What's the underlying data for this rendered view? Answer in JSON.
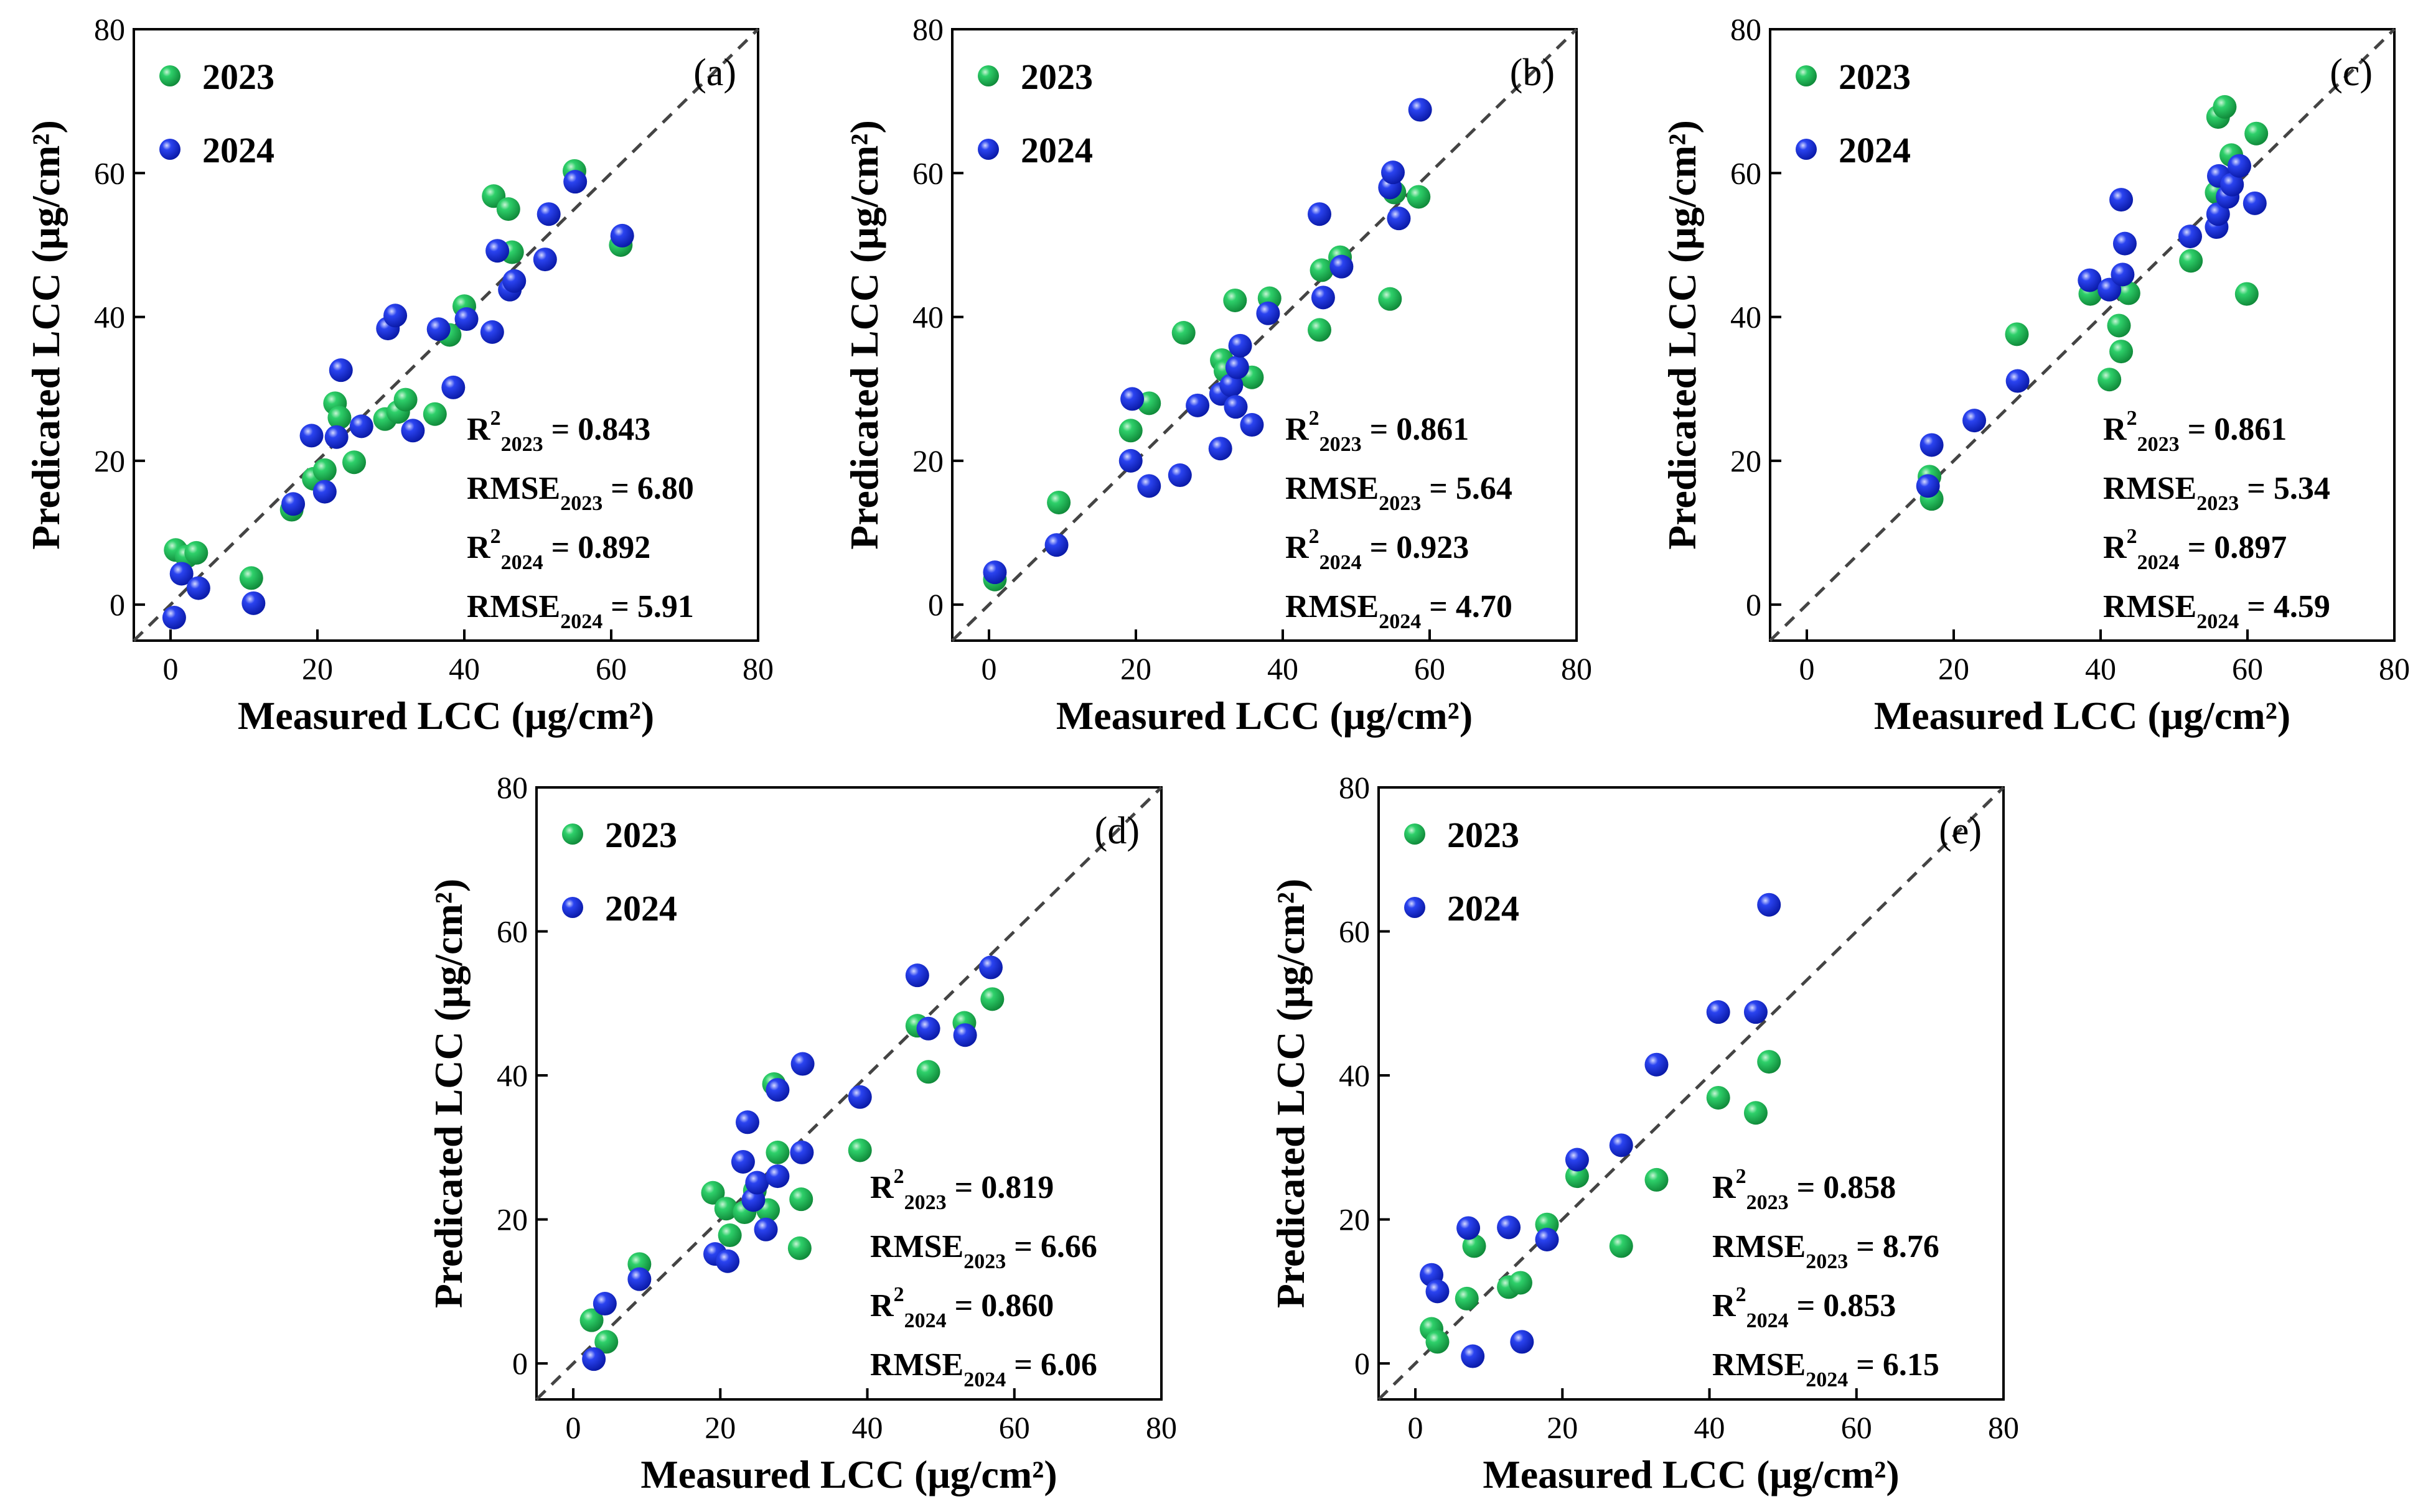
{
  "colors": {
    "series_2023": "#1db954",
    "series_2024": "#1f35e0",
    "diagonal": "#444444",
    "axis": "#000000"
  },
  "chart_data": [
    {
      "type": "scatter",
      "panel_label": "(a)",
      "xlabel": "Measured LCC (μg/cm²)",
      "ylabel": "Predicated LCC (μg/cm²)",
      "xlim": [
        -5,
        80
      ],
      "ylim": [
        -5,
        80
      ],
      "xticks": [
        "0",
        "20",
        "40",
        "60",
        "80"
      ],
      "yticks": [
        "0",
        "20",
        "40",
        "60",
        "80"
      ],
      "legend": [
        "2023",
        "2024"
      ],
      "series": [
        {
          "name": "2023",
          "points": [
            [
              0.7,
              7.6
            ],
            [
              2.2,
              6.7
            ],
            [
              3.5,
              7.2
            ],
            [
              11,
              3.7
            ],
            [
              16.5,
              13.2
            ],
            [
              19.5,
              17.5
            ],
            [
              21,
              18.7
            ],
            [
              22.4,
              28
            ],
            [
              23,
              26
            ],
            [
              25,
              19.8
            ],
            [
              29.2,
              25.8
            ],
            [
              31,
              26.8
            ],
            [
              32,
              28.5
            ],
            [
              36,
              26.5
            ],
            [
              38,
              37.5
            ],
            [
              40,
              41.5
            ],
            [
              44,
              56.8
            ],
            [
              46,
              55
            ],
            [
              46.5,
              49
            ],
            [
              55,
              60.3
            ],
            [
              61.3,
              50
            ]
          ]
        },
        {
          "name": "2024",
          "points": [
            [
              0.5,
              -1.8
            ],
            [
              1.5,
              4.3
            ],
            [
              3.8,
              2.3
            ],
            [
              11.3,
              0.2
            ],
            [
              16.7,
              14
            ],
            [
              19.2,
              23.5
            ],
            [
              21,
              15.7
            ],
            [
              22.6,
              23.3
            ],
            [
              23.2,
              32.6
            ],
            [
              26,
              24.8
            ],
            [
              29.6,
              38.4
            ],
            [
              30.6,
              40.2
            ],
            [
              33,
              24.2
            ],
            [
              36.5,
              38.3
            ],
            [
              38.5,
              30.2
            ],
            [
              40.3,
              39.7
            ],
            [
              43.8,
              37.9
            ],
            [
              44.5,
              49.2
            ],
            [
              46.2,
              43.8
            ],
            [
              46.8,
              45
            ],
            [
              51,
              48
            ],
            [
              51.5,
              54.3
            ],
            [
              55.1,
              58.8
            ],
            [
              61.5,
              51.3
            ]
          ]
        }
      ],
      "stats": [
        {
          "sym": "R",
          "sup": "2",
          "sub": "2023",
          "value": " = 0.843"
        },
        {
          "sym": "RMSE",
          "sup": "",
          "sub": "2023",
          "value": " = 6.80"
        },
        {
          "sym": "R",
          "sup": "2",
          "sub": "2024",
          "value": " = 0.892"
        },
        {
          "sym": "RMSE",
          "sup": "",
          "sub": "2024",
          "value": " = 5.91"
        }
      ]
    },
    {
      "type": "scatter",
      "panel_label": "(b)",
      "xlabel": "Measured LCC (μg/cm²)",
      "ylabel": "Predicated LCC (μg/cm²)",
      "xlim": [
        -5,
        80
      ],
      "ylim": [
        -5,
        80
      ],
      "xticks": [
        "0",
        "20",
        "40",
        "60",
        "80"
      ],
      "yticks": [
        "0",
        "20",
        "40",
        "60",
        "80"
      ],
      "legend": [
        "2023",
        "2024"
      ],
      "series": [
        {
          "name": "2023",
          "points": [
            [
              0.8,
              3.5
            ],
            [
              9.5,
              14.2
            ],
            [
              19.3,
              24.2
            ],
            [
              21.8,
              28
            ],
            [
              26.5,
              37.8
            ],
            [
              31.7,
              34
            ],
            [
              32.2,
              32.5
            ],
            [
              33.5,
              42.3
            ],
            [
              35.8,
              31.6
            ],
            [
              38.2,
              42.6
            ],
            [
              45,
              38.2
            ],
            [
              45.3,
              46.5
            ],
            [
              47.8,
              48.3
            ],
            [
              54.6,
              42.5
            ],
            [
              55.2,
              57.3
            ],
            [
              58.5,
              56.7
            ]
          ]
        },
        {
          "name": "2024",
          "points": [
            [
              0.8,
              4.5
            ],
            [
              9.2,
              8.3
            ],
            [
              19.3,
              20
            ],
            [
              19.5,
              28.6
            ],
            [
              21.8,
              16.5
            ],
            [
              26,
              18
            ],
            [
              28.4,
              27.7
            ],
            [
              31.5,
              21.7
            ],
            [
              31.6,
              29.3
            ],
            [
              33,
              30.5
            ],
            [
              33.6,
              27.5
            ],
            [
              33.8,
              33
            ],
            [
              34.2,
              36
            ],
            [
              35.8,
              25
            ],
            [
              38,
              40.5
            ],
            [
              45,
              54.3
            ],
            [
              45.5,
              42.7
            ],
            [
              48,
              47
            ],
            [
              54.6,
              58
            ],
            [
              55,
              60.1
            ],
            [
              55.8,
              53.7
            ],
            [
              58.7,
              68.8
            ]
          ]
        }
      ],
      "stats": [
        {
          "sym": "R",
          "sup": "2",
          "sub": "2023",
          "value": " = 0.861"
        },
        {
          "sym": "RMSE",
          "sup": "",
          "sub": "2023",
          "value": " = 5.64"
        },
        {
          "sym": "R",
          "sup": "2",
          "sub": "2024",
          "value": " = 0.923"
        },
        {
          "sym": "RMSE",
          "sup": "",
          "sub": "2024",
          "value": " = 4.70"
        }
      ]
    },
    {
      "type": "scatter",
      "panel_label": "(c)",
      "xlabel": "Measured LCC (μg/cm²)",
      "ylabel": "Predicated LCC (μg/cm²)",
      "xlim": [
        -5,
        80
      ],
      "ylim": [
        -5,
        80
      ],
      "xticks": [
        "0",
        "20",
        "40",
        "60",
        "80"
      ],
      "yticks": [
        "0",
        "20",
        "40",
        "60",
        "80"
      ],
      "legend": [
        "2023",
        "2024"
      ],
      "series": [
        {
          "name": "2023",
          "points": [
            [
              16.7,
              17.8
            ],
            [
              17,
              14.7
            ],
            [
              28.6,
              37.6
            ],
            [
              38.6,
              43.2
            ],
            [
              41.2,
              31.3
            ],
            [
              42.5,
              38.8
            ],
            [
              42.8,
              35.2
            ],
            [
              43.8,
              43.3
            ],
            [
              52.3,
              47.8
            ],
            [
              55.8,
              57.3
            ],
            [
              56,
              67.8
            ],
            [
              56.9,
              69.2
            ],
            [
              57.8,
              62.5
            ],
            [
              59.9,
              43.2
            ],
            [
              61.2,
              65.5
            ]
          ]
        },
        {
          "name": "2024",
          "points": [
            [
              16.5,
              16.5
            ],
            [
              17,
              22.2
            ],
            [
              22.8,
              25.6
            ],
            [
              28.7,
              31.1
            ],
            [
              38.5,
              45.1
            ],
            [
              41.2,
              43.8
            ],
            [
              42.8,
              56.3
            ],
            [
              43,
              45.9
            ],
            [
              43.3,
              50.2
            ],
            [
              52.2,
              51.2
            ],
            [
              55.8,
              52.5
            ],
            [
              56,
              54.3
            ],
            [
              56.1,
              59.6
            ],
            [
              57.3,
              56.7
            ],
            [
              57.9,
              58.4
            ],
            [
              58.9,
              61
            ],
            [
              61,
              55.8
            ]
          ]
        }
      ],
      "stats": [
        {
          "sym": "R",
          "sup": "2",
          "sub": "2023",
          "value": " = 0.861"
        },
        {
          "sym": "RMSE",
          "sup": "",
          "sub": "2023",
          "value": " = 5.34"
        },
        {
          "sym": "R",
          "sup": "2",
          "sub": "2024",
          "value": " = 0.897"
        },
        {
          "sym": "RMSE",
          "sup": "",
          "sub": "2024",
          "value": " = 4.59"
        }
      ]
    },
    {
      "type": "scatter",
      "panel_label": "(d)",
      "xlabel": "Measured LCC (μg/cm²)",
      "ylabel": "Predicated LCC (μg/cm²)",
      "xlim": [
        -5,
        80
      ],
      "ylim": [
        -5,
        80
      ],
      "xticks": [
        "0",
        "20",
        "40",
        "60",
        "80"
      ],
      "yticks": [
        "0",
        "20",
        "40",
        "60",
        "80"
      ],
      "legend": [
        "2023",
        "2024"
      ],
      "series": [
        {
          "name": "2023",
          "points": [
            [
              2.5,
              6
            ],
            [
              4.5,
              3
            ],
            [
              9,
              13.8
            ],
            [
              19,
              23.7
            ],
            [
              20.8,
              21.5
            ],
            [
              21.3,
              17.8
            ],
            [
              23.3,
              21
            ],
            [
              24.7,
              24
            ],
            [
              26.5,
              21.3
            ],
            [
              27.3,
              38.8
            ],
            [
              27.8,
              29.3
            ],
            [
              30.8,
              16
            ],
            [
              31,
              22.8
            ],
            [
              39,
              29.6
            ],
            [
              46.8,
              46.9
            ],
            [
              48.3,
              40.5
            ],
            [
              53.2,
              47.3
            ],
            [
              57,
              50.6
            ]
          ]
        },
        {
          "name": "2024",
          "points": [
            [
              2.8,
              0.6
            ],
            [
              4.3,
              8.3
            ],
            [
              9,
              11.7
            ],
            [
              19.3,
              15.2
            ],
            [
              21,
              14.2
            ],
            [
              23.1,
              28
            ],
            [
              23.7,
              33.5
            ],
            [
              24.5,
              22.7
            ],
            [
              25,
              25.1
            ],
            [
              26.2,
              18.6
            ],
            [
              27.8,
              26
            ],
            [
              27.8,
              38
            ],
            [
              31.1,
              29.3
            ],
            [
              31.2,
              41.6
            ],
            [
              39,
              37
            ],
            [
              46.8,
              53.9
            ],
            [
              48.3,
              46.5
            ],
            [
              53.3,
              45.6
            ],
            [
              56.8,
              55
            ]
          ]
        }
      ],
      "stats": [
        {
          "sym": "R",
          "sup": "2",
          "sub": "2023",
          "value": " = 0.819"
        },
        {
          "sym": "RMSE",
          "sup": "",
          "sub": "2023",
          "value": " = 6.66"
        },
        {
          "sym": "R",
          "sup": "2",
          "sub": "2024",
          "value": " = 0.860"
        },
        {
          "sym": "RMSE",
          "sup": "",
          "sub": "2024",
          "value": " = 6.06"
        }
      ]
    },
    {
      "type": "scatter",
      "panel_label": "(e)",
      "xlabel": "Measured LCC (μg/cm²)",
      "ylabel": "Predicated LCC (μg/cm²)",
      "xlim": [
        -5,
        80
      ],
      "ylim": [
        -5,
        80
      ],
      "xticks": [
        "0",
        "20",
        "40",
        "60",
        "80"
      ],
      "yticks": [
        "0",
        "20",
        "40",
        "60",
        "80"
      ],
      "legend": [
        "2023",
        "2024"
      ],
      "series": [
        {
          "name": "2023",
          "points": [
            [
              2.2,
              4.8
            ],
            [
              3,
              3
            ],
            [
              7,
              9
            ],
            [
              8,
              16.3
            ],
            [
              12.7,
              10.6
            ],
            [
              14.3,
              11.2
            ],
            [
              17.9,
              19.3
            ],
            [
              22,
              26
            ],
            [
              28,
              16.3
            ],
            [
              32.8,
              25.5
            ],
            [
              41.2,
              36.9
            ],
            [
              46.3,
              34.8
            ],
            [
              48.1,
              41.9
            ]
          ]
        },
        {
          "name": "2024",
          "points": [
            [
              2.2,
              12.3
            ],
            [
              3,
              10
            ],
            [
              7.2,
              18.8
            ],
            [
              7.8,
              1
            ],
            [
              12.7,
              18.9
            ],
            [
              14.5,
              3
            ],
            [
              17.9,
              17.2
            ],
            [
              22,
              28.3
            ],
            [
              28,
              30.3
            ],
            [
              32.8,
              41.5
            ],
            [
              41.2,
              48.8
            ],
            [
              46.3,
              48.8
            ],
            [
              48.1,
              63.7
            ]
          ]
        }
      ],
      "stats": [
        {
          "sym": "R",
          "sup": "2",
          "sub": "2023",
          "value": " = 0.858"
        },
        {
          "sym": "RMSE",
          "sup": "",
          "sub": "2023",
          "value": " = 8.76"
        },
        {
          "sym": "R",
          "sup": "2",
          "sub": "2024",
          "value": " = 0.853"
        },
        {
          "sym": "RMSE",
          "sup": "",
          "sub": "2024",
          "value": " = 6.15"
        }
      ]
    }
  ]
}
